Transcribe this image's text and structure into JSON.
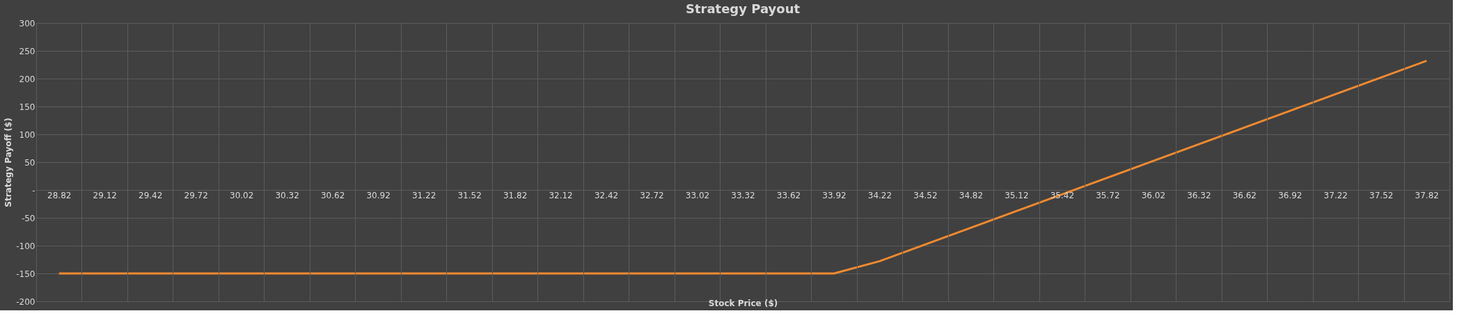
{
  "chart_data": {
    "type": "line",
    "title": "Strategy Payout",
    "xlabel": "Stock Price ($)",
    "ylabel": "Strategy Payoff ($)",
    "categories": [
      "28.82",
      "29.12",
      "29.42",
      "29.72",
      "30.02",
      "30.32",
      "30.62",
      "30.92",
      "31.22",
      "31.52",
      "31.82",
      "32.12",
      "32.42",
      "32.72",
      "33.02",
      "33.32",
      "33.62",
      "33.92",
      "34.22",
      "34.52",
      "34.82",
      "35.12",
      "35.42",
      "35.72",
      "36.02",
      "36.32",
      "36.62",
      "36.92",
      "37.22",
      "37.52",
      "37.82"
    ],
    "series": [
      {
        "color": "#f08a30",
        "values": [
          -150,
          -150,
          -150,
          -150,
          -150,
          -150,
          -150,
          -150,
          -150,
          -150,
          -150,
          -150,
          -150,
          -150,
          -150,
          -150,
          -150,
          -150,
          -128,
          -98,
          -68,
          -38,
          -8,
          22,
          52,
          82,
          112,
          142,
          172,
          202,
          232
        ]
      }
    ],
    "ylim": [
      -200,
      300
    ],
    "yticks": [
      -200,
      -150,
      -100,
      -50,
      {
        "value": 0,
        "label": "-"
      },
      50,
      100,
      150,
      200,
      250,
      300
    ],
    "grid": true,
    "marker": "none",
    "line_style": "solid"
  }
}
